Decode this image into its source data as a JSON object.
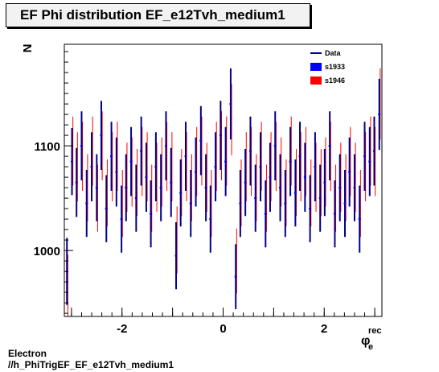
{
  "header": {
    "title": "EF Phi distribution EF_e12Tvh_medium1"
  },
  "footer": {
    "line1": "Electron",
    "line2": "//h_PhiTrigEF_EF_e12Tvh_medium1"
  },
  "chart_data": {
    "type": "scatter",
    "title": "EF Phi distribution EF_e12Tvh_medium1",
    "xlabel": "φ_e^rec",
    "ylabel": "N",
    "xlim": [
      -3.1416,
      3.1416
    ],
    "ylim": [
      937,
      1197
    ],
    "x_ticks": [
      "-2",
      "0",
      "2"
    ],
    "y_ticks": [
      "1000",
      "1100"
    ],
    "legend": {
      "placement": "top-right",
      "entries": [
        "Data",
        "s1933",
        "s1946"
      ]
    },
    "colors": {
      "data": "#00008b",
      "s1933": "#0000ff",
      "s1946": "#ff0000"
    },
    "series": [
      {
        "name": "Data",
        "bin_width": 0.0982,
        "x": [
          -3.09,
          -2.99,
          -2.9,
          -2.8,
          -2.7,
          -2.6,
          -2.5,
          -2.41,
          -2.31,
          -2.21,
          -2.11,
          -2.01,
          -1.92,
          -1.82,
          -1.72,
          -1.62,
          -1.52,
          -1.43,
          -1.33,
          -1.23,
          -1.13,
          -1.03,
          -0.93,
          -0.84,
          -0.74,
          -0.64,
          -0.54,
          -0.44,
          -0.34,
          -0.25,
          -0.15,
          -0.05,
          0.05,
          0.15,
          0.25,
          0.34,
          0.44,
          0.54,
          0.64,
          0.74,
          0.84,
          0.93,
          1.03,
          1.13,
          1.23,
          1.33,
          1.43,
          1.52,
          1.62,
          1.72,
          1.82,
          1.92,
          2.01,
          2.11,
          2.21,
          2.31,
          2.41,
          2.5,
          2.6,
          2.7,
          2.8,
          2.9,
          2.99,
          3.09
        ],
        "y": [
          980,
          1085,
          1065,
          1100,
          1045,
          1080,
          1060,
          1110,
          1040,
          1090,
          1075,
          1030,
          1060,
          1085,
          1050,
          1095,
          1070,
          1035,
          1080,
          1060,
          1100,
          1065,
          995,
          1055,
          1090,
          1045,
          1075,
          1105,
          1060,
          1030,
          1080,
          1110,
          1085,
          1140,
          975,
          1045,
          1065,
          1095,
          1050,
          1080,
          1035,
          1070,
          1100,
          1060,
          1045,
          1085,
          1055,
          1090,
          1070,
          1040,
          1080,
          1050,
          1065,
          1100,
          1035,
          1060,
          1045,
          1075,
          1060,
          1030,
          1090,
          1085,
          1095,
          1130
        ],
        "err": [
          32,
          32,
          33,
          33,
          32,
          33,
          32,
          33,
          32,
          33,
          33,
          32,
          32,
          33,
          32,
          33,
          33,
          32,
          33,
          32,
          33,
          33,
          32,
          32,
          33,
          32,
          33,
          33,
          32,
          32,
          33,
          33,
          33,
          34,
          31,
          32,
          32,
          33,
          32,
          33,
          32,
          33,
          33,
          32,
          32,
          33,
          32,
          33,
          33,
          32,
          33,
          32,
          32,
          33,
          32,
          32,
          32,
          33,
          32,
          32,
          33,
          33,
          33,
          34
        ]
      },
      {
        "name": "s1933",
        "x": [
          -3.09,
          -2.99,
          -2.9,
          -2.8,
          -2.7,
          -2.6,
          -2.5,
          -2.41,
          -2.31,
          -2.21,
          -2.11,
          -2.01,
          -1.92,
          -1.82,
          -1.72,
          -1.62,
          -1.52,
          -1.43,
          -1.33,
          -1.23,
          -1.13,
          -1.03,
          -0.93,
          -0.84,
          -0.74,
          -0.64,
          -0.54,
          -0.44,
          -0.34,
          -0.25,
          -0.15,
          -0.05,
          0.05,
          0.15,
          0.25,
          0.34,
          0.44,
          0.54,
          0.64,
          0.74,
          0.84,
          0.93,
          1.03,
          1.13,
          1.23,
          1.33,
          1.43,
          1.52,
          1.62,
          1.72,
          1.82,
          1.92,
          2.01,
          2.11,
          2.21,
          2.31,
          2.41,
          2.5,
          2.6,
          2.7,
          2.8,
          2.9,
          2.99,
          3.09
        ],
        "y": [
          980,
          1085,
          1065,
          1100,
          1045,
          1080,
          1060,
          1110,
          1040,
          1090,
          1075,
          1030,
          1060,
          1085,
          1050,
          1095,
          1070,
          1035,
          1080,
          1060,
          1100,
          1065,
          995,
          1055,
          1090,
          1045,
          1075,
          1105,
          1060,
          1030,
          1080,
          1110,
          1085,
          1140,
          975,
          1045,
          1065,
          1095,
          1050,
          1080,
          1035,
          1070,
          1100,
          1060,
          1045,
          1085,
          1055,
          1090,
          1070,
          1040,
          1080,
          1050,
          1065,
          1100,
          1035,
          1060,
          1045,
          1075,
          1060,
          1030,
          1090,
          1085,
          1095,
          1130
        ]
      },
      {
        "name": "s1946",
        "x": [
          -3.09,
          -2.99,
          -2.9,
          -2.8,
          -2.7,
          -2.6,
          -2.5,
          -2.41,
          -2.31,
          -2.21,
          -2.11,
          -2.01,
          -1.92,
          -1.82,
          -1.72,
          -1.62,
          -1.52,
          -1.43,
          -1.33,
          -1.23,
          -1.13,
          -1.03,
          -0.93,
          -0.84,
          -0.74,
          -0.64,
          -0.54,
          -0.44,
          -0.34,
          -0.25,
          -0.15,
          -0.05,
          0.05,
          0.15,
          0.25,
          0.34,
          0.44,
          0.54,
          0.64,
          0.74,
          0.84,
          0.93,
          1.03,
          1.13,
          1.23,
          1.33,
          1.43,
          1.52,
          1.62,
          1.72,
          1.82,
          1.92,
          2.01,
          2.11,
          2.21,
          2.31,
          2.41,
          2.5,
          2.6,
          2.7,
          2.8,
          2.9,
          2.99,
          3.09
        ],
        "y": [
          965,
          1095,
          1080,
          1090,
          1060,
          1095,
          1050,
          1100,
          1055,
          1080,
          1090,
          1045,
          1070,
          1075,
          1065,
          1085,
          1080,
          1050,
          1070,
          1075,
          1090,
          1080,
          1010,
          1065,
          1080,
          1060,
          1085,
          1095,
          1070,
          1045,
          1090,
          1100,
          1095,
          1125,
          990,
          1055,
          1080,
          1085,
          1060,
          1090,
          1050,
          1080,
          1090,
          1075,
          1055,
          1095,
          1065,
          1080,
          1085,
          1055,
          1070,
          1065,
          1075,
          1090,
          1050,
          1070,
          1060,
          1085,
          1070,
          1045,
          1080,
          1095,
          1085,
          1140
        ],
        "err": [
          31,
          33,
          33,
          33,
          32,
          33,
          32,
          33,
          32,
          33,
          33,
          32,
          33,
          33,
          32,
          33,
          33,
          32,
          33,
          33,
          33,
          33,
          32,
          32,
          33,
          32,
          33,
          33,
          33,
          32,
          33,
          33,
          33,
          34,
          31,
          32,
          33,
          33,
          32,
          33,
          32,
          33,
          33,
          33,
          32,
          33,
          32,
          33,
          33,
          32,
          33,
          32,
          33,
          33,
          32,
          33,
          32,
          33,
          33,
          32,
          33,
          33,
          33,
          34
        ]
      }
    ]
  }
}
